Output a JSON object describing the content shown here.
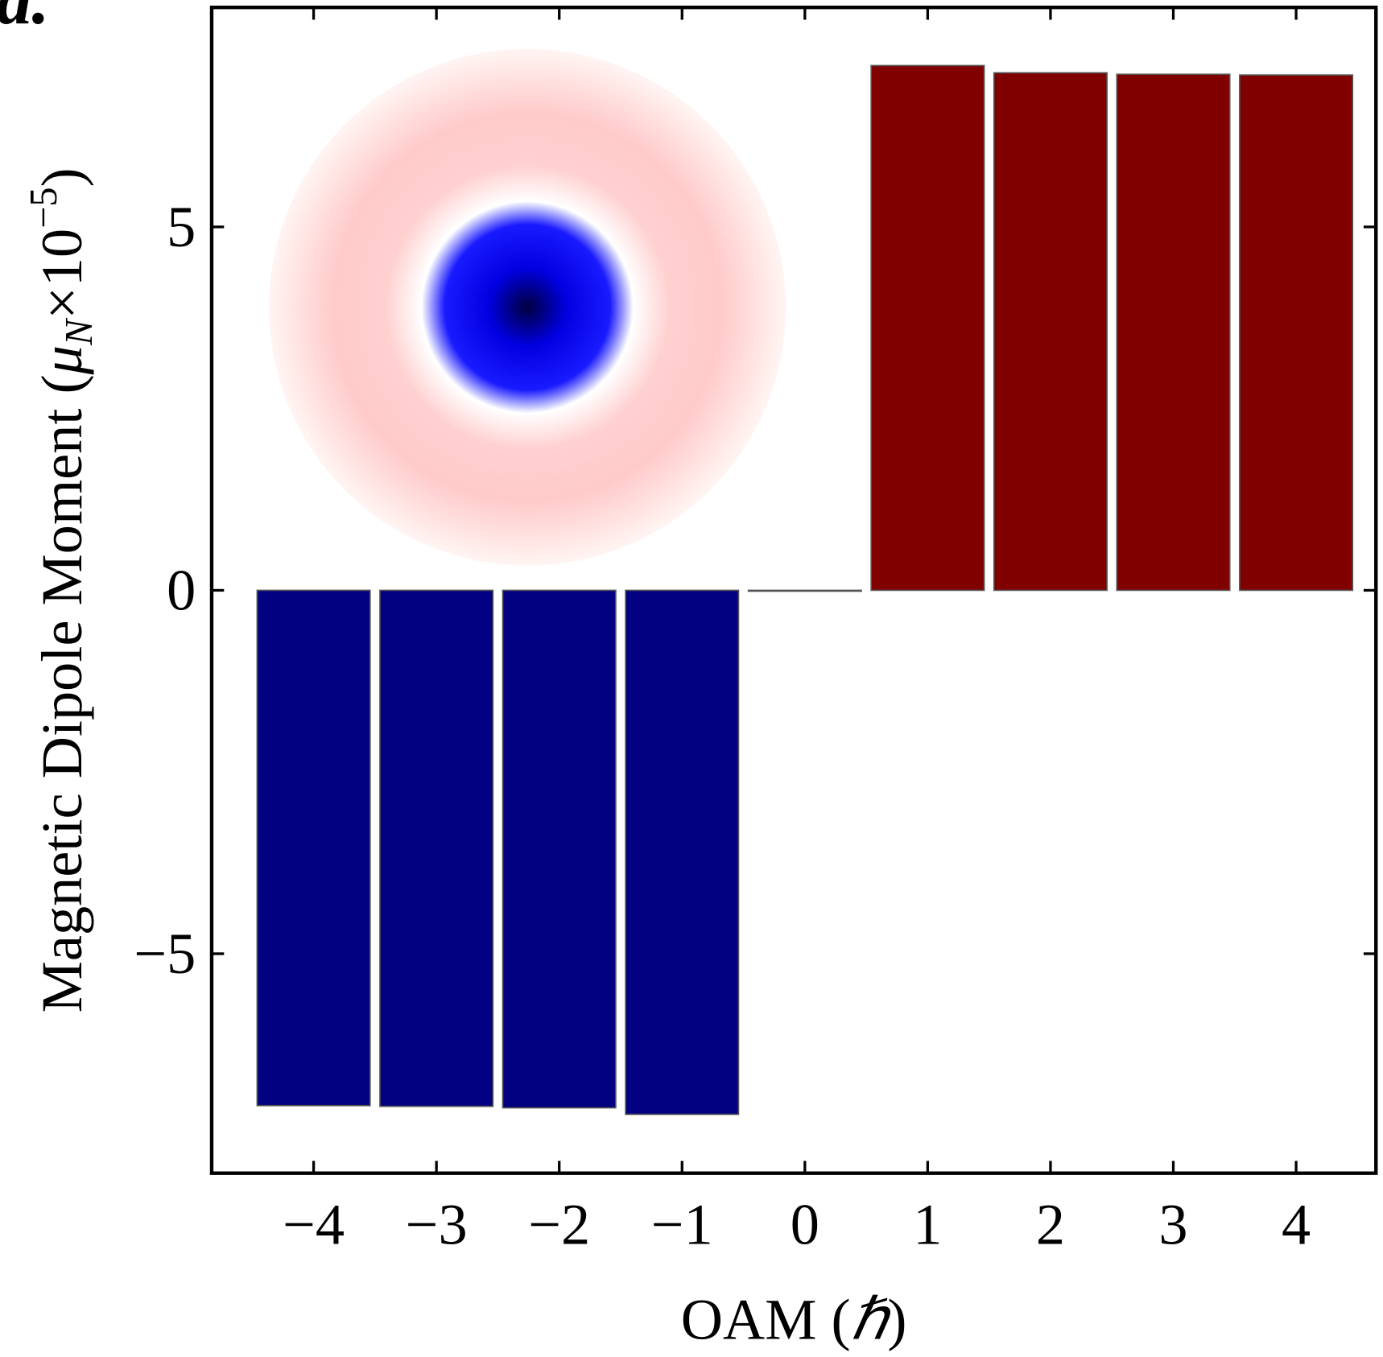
{
  "chart_data": {
    "type": "bar",
    "panel_label": "a.",
    "x_label": [
      "OAM (",
      "ℏ",
      ")"
    ],
    "y_label": [
      "Magnetic Dipole Moment (",
      "μ",
      "N",
      "×10",
      "−5",
      ")"
    ],
    "x": [
      -4,
      -3,
      -2,
      -1,
      0,
      1,
      2,
      3,
      4
    ],
    "values": [
      -7.09,
      -7.1,
      -7.12,
      -7.21,
      0,
      7.22,
      7.12,
      7.1,
      7.09
    ],
    "color_negative": "#000080",
    "color_positive": "#800000",
    "xlim": [
      -4.83,
      4.65
    ],
    "ylim": [
      -8.02,
      8.02
    ],
    "xticks": [
      {
        "value": -4,
        "label": "−4"
      },
      {
        "value": -3,
        "label": "−3"
      },
      {
        "value": -2,
        "label": "−2"
      },
      {
        "value": -1,
        "label": "−1"
      },
      0,
      1,
      2,
      3,
      4
    ],
    "yticks": [
      {
        "value": -5,
        "label": "−5"
      },
      0,
      5
    ]
  }
}
